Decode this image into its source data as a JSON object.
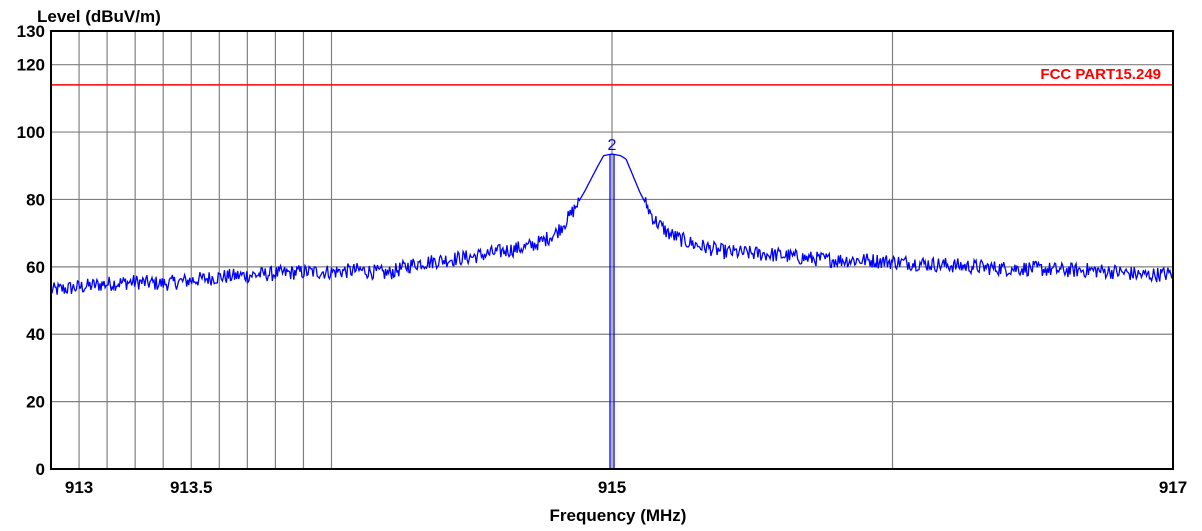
{
  "chart_data": {
    "type": "line",
    "ylabel": "Level (dBuV/m)",
    "xlabel": "Frequency (MHz)",
    "xlim": [
      913,
      917
    ],
    "ylim": [
      0,
      130
    ],
    "y_ticks": [
      0,
      20,
      40,
      60,
      80,
      100,
      120,
      130
    ],
    "x_tick_labels": [
      {
        "value": 913.1,
        "label": "913"
      },
      {
        "value": 913.5,
        "label": "913.5"
      },
      {
        "value": 915.0,
        "label": "915"
      },
      {
        "value": 917.0,
        "label": "917"
      }
    ],
    "x_gridlines": [
      913.1,
      913.2,
      913.3,
      913.4,
      913.5,
      913.6,
      913.7,
      913.8,
      913.9,
      914.0,
      915.0,
      916.0,
      917.0
    ],
    "y_gridlines": [
      20,
      40,
      60,
      80,
      100,
      120
    ],
    "grid": true,
    "limit_line": {
      "name": "FCC PART15.249",
      "value": 114,
      "color": "#ff0000"
    },
    "marker": {
      "label": "2",
      "x": 915.0,
      "y": 93.5
    },
    "series": [
      {
        "color": "#0000ff",
        "x": [
          913.0,
          913.1,
          913.2,
          913.3,
          913.4,
          913.5,
          913.6,
          913.7,
          913.8,
          913.9,
          914.0,
          914.1,
          914.2,
          914.3,
          914.4,
          914.5,
          914.6,
          914.7,
          914.75,
          914.8,
          914.85,
          914.9,
          914.95,
          914.97,
          915.0,
          915.03,
          915.05,
          915.1,
          915.15,
          915.2,
          915.25,
          915.3,
          915.4,
          915.5,
          915.6,
          915.7,
          915.8,
          915.9,
          916.0,
          916.1,
          916.2,
          916.3,
          916.4,
          916.5,
          916.6,
          916.7,
          916.8,
          916.9,
          917.0
        ],
        "y": [
          53.0,
          54.0,
          55.0,
          55.5,
          55.0,
          56.0,
          57.0,
          57.5,
          58.0,
          58.5,
          58.5,
          59.0,
          58.0,
          61.0,
          62.0,
          63.0,
          64.5,
          66.0,
          67.5,
          70.0,
          75.0,
          82.0,
          90.0,
          93.0,
          93.5,
          93.0,
          92.0,
          82.0,
          74.0,
          70.0,
          68.0,
          66.5,
          64.5,
          64.0,
          63.5,
          62.5,
          62.0,
          62.0,
          61.5,
          61.0,
          60.5,
          60.0,
          59.5,
          59.5,
          59.0,
          59.0,
          58.5,
          57.5,
          58.0
        ]
      }
    ]
  }
}
